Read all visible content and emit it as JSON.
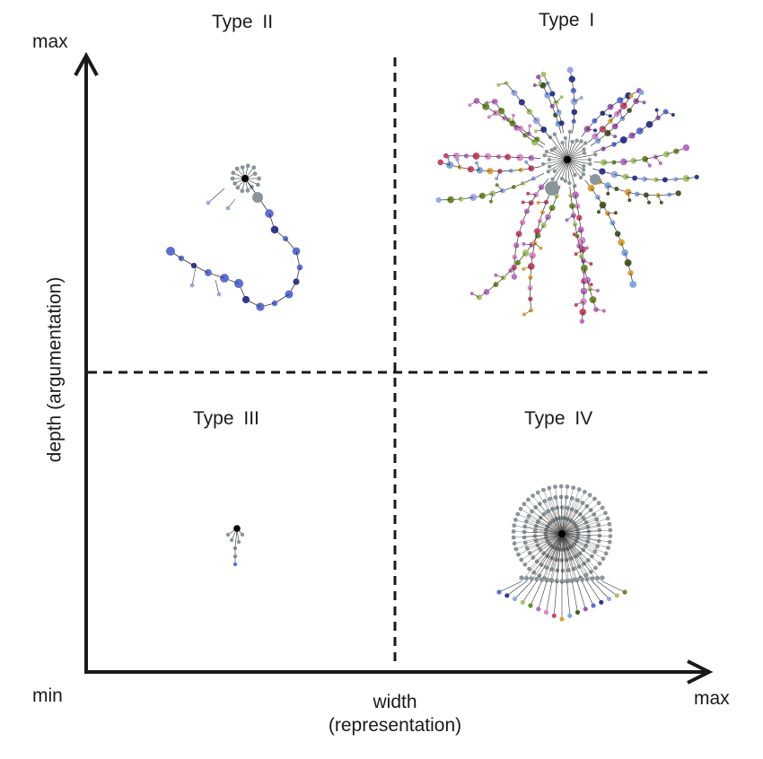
{
  "axes": {
    "y_max_label": "max",
    "y_min_label": "min",
    "x_max_label": "max",
    "y_title": "depth (argumentation)",
    "x_title_line1": "width",
    "x_title_line2": "(representation)"
  },
  "quadrants": {
    "q2": "Type  II",
    "q1": "Type  I",
    "q3": "Type  III",
    "q4": "Type IV"
  },
  "colors": {
    "axis": "#1a1a1a",
    "hub": "#000000",
    "gray": "#8a9499",
    "edge": "#333333",
    "palette": [
      "#5b6fd6",
      "#2f3a8f",
      "#9aa8e8",
      "#a4c46a",
      "#6f8a2e",
      "#b96fc0",
      "#d889c8",
      "#c44a6a",
      "#d8a23a",
      "#7fa6e0",
      "#4a5a2a",
      "#9b5bb0"
    ]
  }
}
